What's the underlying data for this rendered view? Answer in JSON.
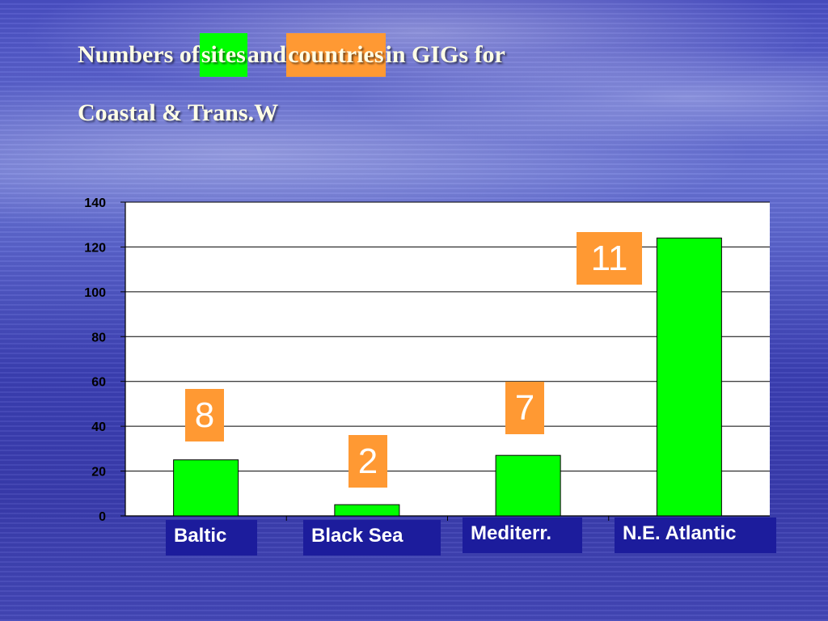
{
  "title": {
    "line1_part1": "Numbers of ",
    "line1_sites": "sites",
    "line1_and": " and ",
    "line1_countries": "countries",
    "line1_rest": " in GIGs for",
    "line2": "Coastal & Trans.W"
  },
  "colors": {
    "bar": "#00ff00",
    "countries_box": "#ff9933",
    "category_box": "#1c1c9c"
  },
  "chart_data": {
    "type": "bar",
    "categories": [
      "Baltic",
      "Black Sea",
      "Mediterr.",
      "N.E. Atlantic"
    ],
    "series": [
      {
        "values": [
          25,
          5,
          27,
          124
        ]
      }
    ],
    "countries_annotations": [
      "8",
      "2",
      "7",
      "11"
    ],
    "ylim": [
      0,
      140
    ],
    "yticks": [
      "0",
      "20",
      "40",
      "60",
      "80",
      "100",
      "120",
      "140"
    ],
    "grid": true,
    "legend": "none"
  }
}
